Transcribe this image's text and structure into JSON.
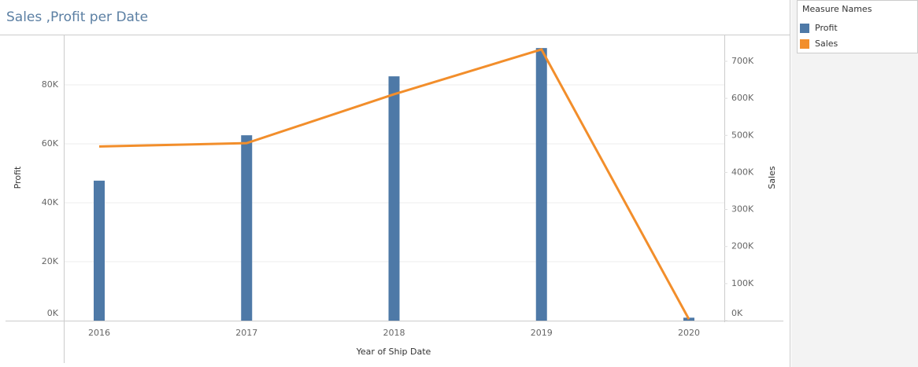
{
  "chart_data": {
    "type": "combo",
    "title": "Sales ,Profit per Date",
    "x_label": "Year of Ship Date",
    "y_label": "Profit",
    "y2_label": "Sales",
    "legend_title": "Measure Names",
    "legend": "top-right",
    "categories": [
      "2016",
      "2017",
      "2018",
      "2019",
      "2020"
    ],
    "series": [
      {
        "name": "Profit",
        "type": "bar",
        "color": "#4e79a7",
        "axis": "y",
        "values": [
          47500,
          62900,
          82900,
          92500,
          1000
        ]
      },
      {
        "name": "Sales",
        "type": "line",
        "color": "#f28e2b",
        "axis": "y2",
        "values": [
          470000,
          479000,
          611000,
          732000,
          4000
        ]
      }
    ],
    "ylim": [
      0,
      96800
    ],
    "yticks": [
      {
        "value": 0,
        "label": "0K"
      },
      {
        "value": 20000,
        "label": "20K"
      },
      {
        "value": 40000,
        "label": "40K"
      },
      {
        "value": 60000,
        "label": "60K"
      },
      {
        "value": 80000,
        "label": "80K"
      }
    ],
    "y2lim": [
      0,
      770000
    ],
    "y2ticks": [
      {
        "value": 0,
        "label": "0K"
      },
      {
        "value": 100000,
        "label": "100K"
      },
      {
        "value": 200000,
        "label": "200K"
      },
      {
        "value": 300000,
        "label": "300K"
      },
      {
        "value": 400000,
        "label": "400K"
      },
      {
        "value": 500000,
        "label": "500K"
      },
      {
        "value": 600000,
        "label": "600K"
      },
      {
        "value": 700000,
        "label": "700K"
      }
    ],
    "grid": true
  }
}
